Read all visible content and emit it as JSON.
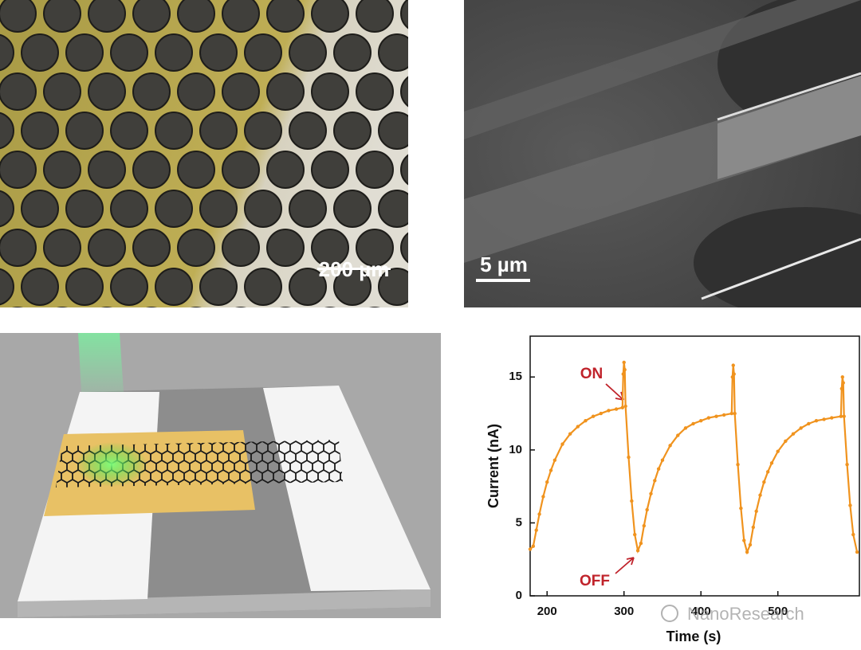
{
  "panels": {
    "optical_scale": "200 µm",
    "sem_scale": "5 µm",
    "watermark": "NanoResearch"
  },
  "chart_data": {
    "type": "line",
    "xlabel": "Time (s)",
    "ylabel": "Current (nA)",
    "annotations": [
      "ON",
      "OFF"
    ],
    "x": [
      178,
      182,
      186,
      190,
      195,
      200,
      205,
      210,
      220,
      230,
      240,
      250,
      260,
      270,
      280,
      290,
      298,
      299,
      300,
      301,
      302,
      306,
      310,
      314,
      318,
      322,
      326,
      330,
      335,
      340,
      345,
      350,
      360,
      370,
      380,
      390,
      400,
      410,
      420,
      430,
      440,
      441,
      442,
      443,
      444,
      448,
      452,
      456,
      460,
      464,
      468,
      472,
      477,
      482,
      487,
      492,
      500,
      510,
      520,
      530,
      540,
      550,
      560,
      570,
      582,
      583,
      584,
      585,
      586,
      590,
      594,
      598,
      603
    ],
    "series": [
      {
        "color": "#f0931e",
        "values": [
          3.2,
          3.4,
          4.5,
          5.6,
          6.8,
          7.8,
          8.6,
          9.3,
          10.4,
          11.1,
          11.6,
          12.0,
          12.3,
          12.5,
          12.7,
          12.8,
          12.9,
          15.2,
          16.0,
          15.5,
          13.0,
          9.5,
          6.5,
          4.2,
          3.1,
          3.6,
          4.8,
          5.9,
          7.0,
          7.9,
          8.7,
          9.3,
          10.3,
          11.0,
          11.5,
          11.8,
          12.0,
          12.2,
          12.3,
          12.4,
          12.5,
          15.0,
          15.8,
          15.2,
          12.5,
          9.0,
          6.0,
          3.8,
          3.0,
          3.5,
          4.7,
          5.8,
          6.9,
          7.8,
          8.5,
          9.1,
          9.9,
          10.6,
          11.1,
          11.5,
          11.8,
          12.0,
          12.1,
          12.2,
          12.3,
          14.2,
          15.0,
          14.6,
          12.3,
          9.0,
          6.2,
          4.2,
          3.0
        ]
      }
    ],
    "xlim": [
      178,
      606
    ],
    "ylim": [
      0,
      17.8
    ],
    "xticks": [
      200,
      300,
      400,
      500
    ],
    "yticks": [
      0,
      5,
      10,
      15
    ]
  }
}
